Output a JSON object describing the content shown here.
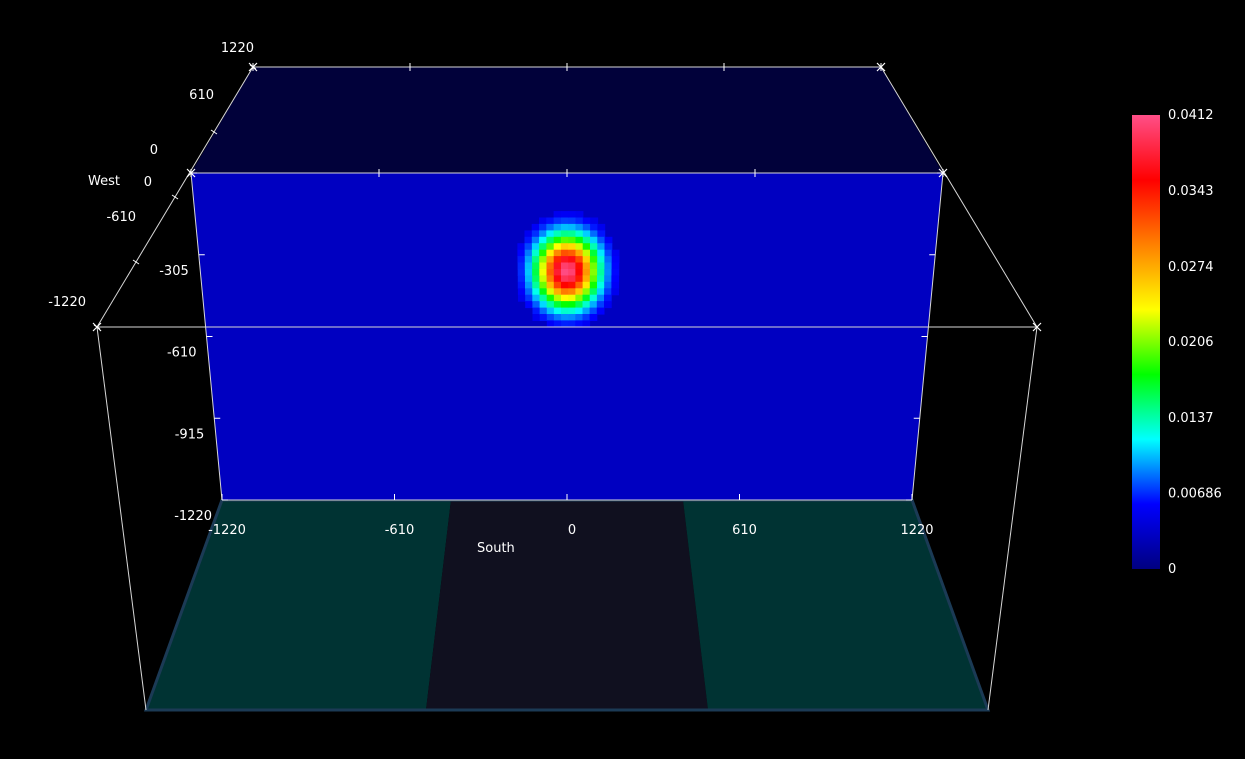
{
  "chart_data": {
    "type": "heatmap",
    "title": "",
    "axes": {
      "south": {
        "label": "South",
        "range": [
          -1220,
          1220
        ],
        "ticks": [
          -1220,
          -610,
          0,
          610,
          1220
        ]
      },
      "west": {
        "label": "West",
        "range": [
          -1220,
          1220
        ],
        "ticks": [
          -1220,
          -610,
          0,
          610,
          1220
        ]
      },
      "vertical": {
        "label": "",
        "range": [
          -1220,
          0
        ],
        "ticks": [
          0,
          -305,
          -610,
          -915,
          -1220
        ]
      }
    },
    "colorbar": {
      "min": 0,
      "max": 0.0412,
      "tick_values": [
        0,
        0.00686,
        0.0137,
        0.0206,
        0.0274,
        0.0343,
        0.0412
      ],
      "tick_labels": [
        "0",
        "0.00686",
        "0.0137",
        "0.0206",
        "0.0274",
        "0.0343",
        "0.0412"
      ],
      "colors": [
        "#000080",
        "#0000ff",
        "#00ffff",
        "#00ff00",
        "#ffff00",
        "#ff8000",
        "#ff0000",
        "#ff4f88"
      ]
    },
    "hotspot": {
      "south": 0,
      "depth": -366,
      "peak_value": 0.0412,
      "radius_south": 110,
      "radius_depth": 140
    },
    "background_value": 0.003,
    "floor_colors": {
      "side": "#003333",
      "center": "#10101f"
    },
    "slice_face_color": "#000099",
    "top_face_color": "#01013a"
  }
}
